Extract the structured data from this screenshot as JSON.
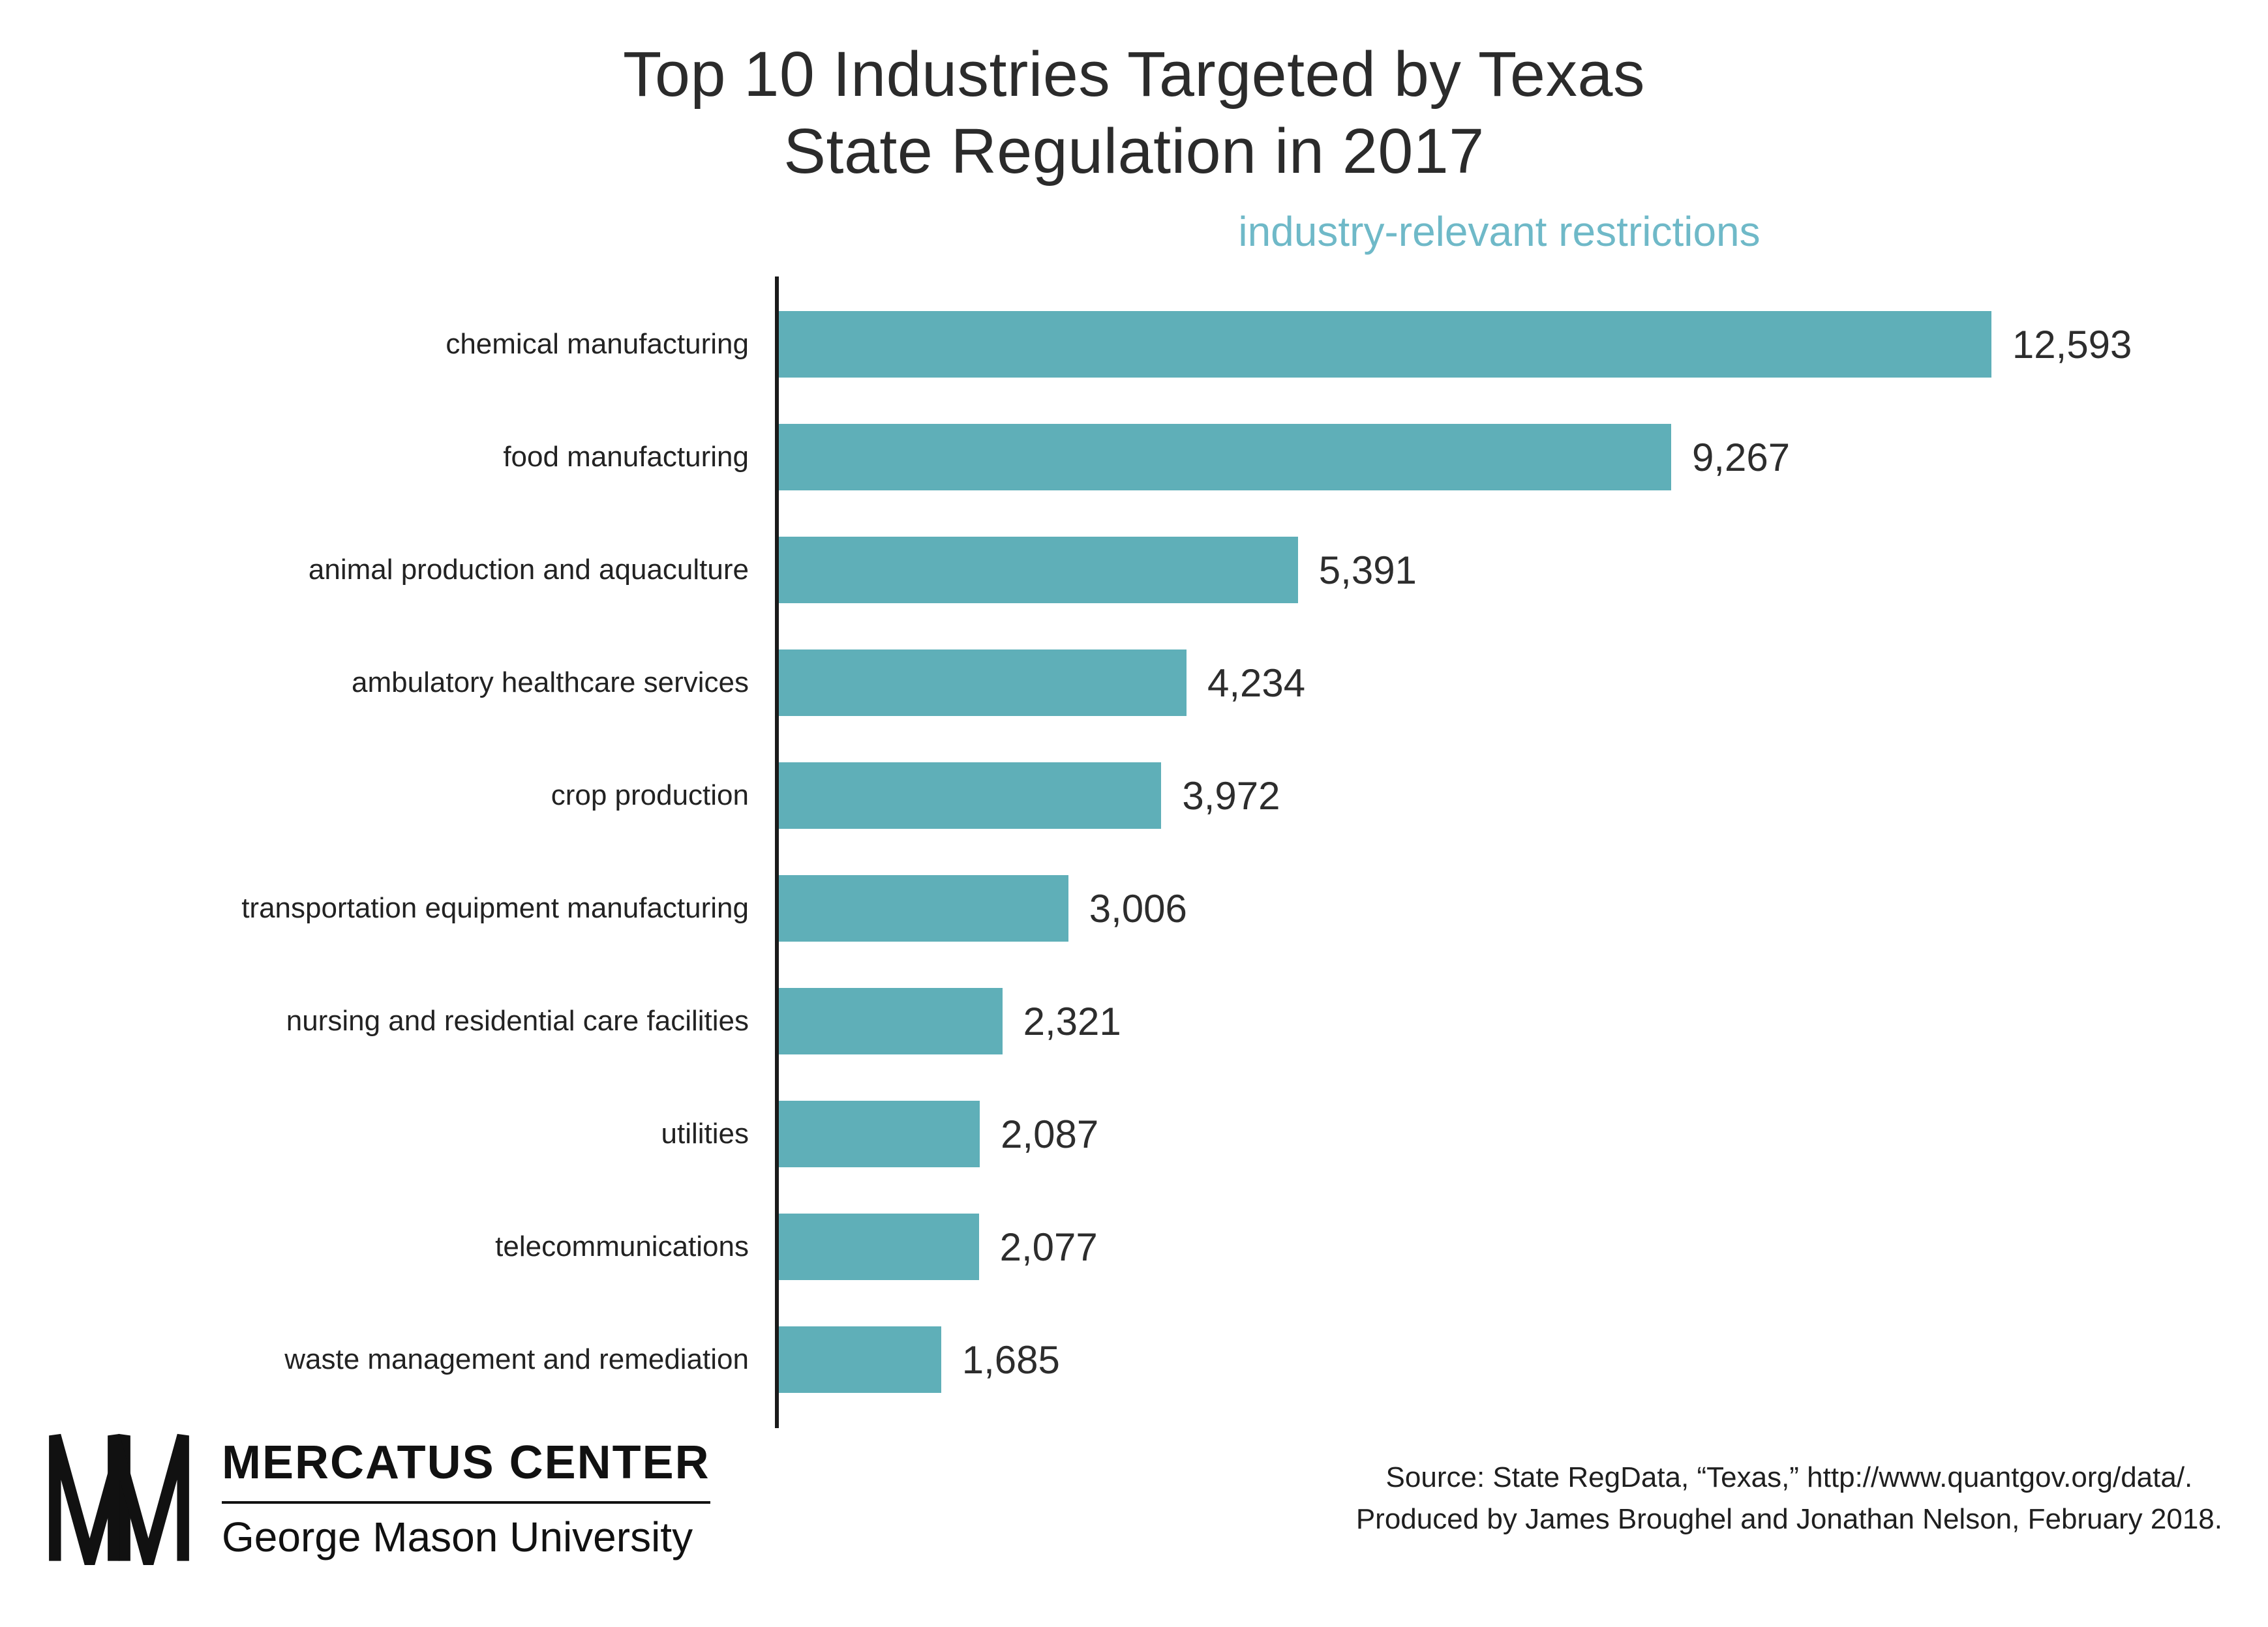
{
  "title": {
    "line1": "Top 10 Industries Targeted by Texas",
    "line2": "State Regulation in 2017"
  },
  "subtitle": "industry-relevant restrictions",
  "chart_data": {
    "type": "bar",
    "orientation": "horizontal",
    "title": "Top 10 Industries Targeted by Texas State Regulation in 2017",
    "subtitle": "industry-relevant restrictions",
    "xlabel": "",
    "ylabel": "",
    "xlim": [
      0,
      13000
    ],
    "grid": false,
    "legend": false,
    "categories": [
      "chemical manufacturing",
      "food manufacturing",
      "animal production and aquaculture",
      "ambulatory healthcare services",
      "crop production",
      "transportation equipment manufacturing",
      "nursing and residential care facilities",
      "utilities",
      "telecommunications",
      "waste management and remediation"
    ],
    "values": [
      12593,
      9267,
      5391,
      4234,
      3972,
      3006,
      2321,
      2087,
      2077,
      1685
    ],
    "value_labels": [
      "12,593",
      "9,267",
      "5,391",
      "4,234",
      "3,972",
      "3,006",
      "2,321",
      "2,087",
      "2,077",
      "1,685"
    ]
  },
  "colors": {
    "bar": "#5FAFB8",
    "subtitle": "#6FB9C8",
    "axis": "#1a1a1a"
  },
  "footer": {
    "logo_title": "MERCATUS CENTER",
    "logo_subtitle": "George Mason University",
    "source_line1": "Source: State RegData, “Texas,” http://www.quantgov.org/data/.",
    "source_line2": "Produced by James Broughel and Jonathan Nelson, February 2018."
  }
}
